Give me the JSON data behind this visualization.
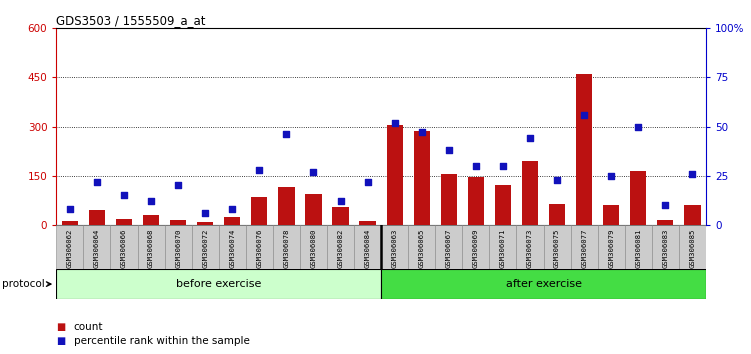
{
  "title": "GDS3503 / 1555509_a_at",
  "categories": [
    "GSM306062",
    "GSM306064",
    "GSM306066",
    "GSM306068",
    "GSM306070",
    "GSM306072",
    "GSM306074",
    "GSM306076",
    "GSM306078",
    "GSM306080",
    "GSM306082",
    "GSM306084",
    "GSM306063",
    "GSM306065",
    "GSM306067",
    "GSM306069",
    "GSM306071",
    "GSM306073",
    "GSM306075",
    "GSM306077",
    "GSM306079",
    "GSM306081",
    "GSM306083",
    "GSM306085"
  ],
  "count_values": [
    12,
    45,
    18,
    30,
    15,
    8,
    25,
    85,
    115,
    95,
    55,
    12,
    305,
    285,
    155,
    145,
    120,
    195,
    65,
    460,
    60,
    165,
    15,
    60
  ],
  "percentile_values": [
    8,
    22,
    15,
    12,
    20,
    6,
    8,
    28,
    46,
    27,
    12,
    22,
    52,
    47,
    38,
    30,
    30,
    44,
    23,
    56,
    25,
    50,
    10,
    26
  ],
  "before_exercise_count": 12,
  "after_exercise_count": 12,
  "bar_color": "#bb1111",
  "dot_color": "#1111bb",
  "before_bg": "#ccffcc",
  "after_bg": "#44dd44",
  "tick_bg": "#cccccc",
  "left_yaxis_color": "#cc0000",
  "right_yaxis_color": "#0000cc",
  "left_ylim": [
    0,
    600
  ],
  "right_ylim": [
    0,
    100
  ],
  "left_yticks": [
    0,
    150,
    300,
    450,
    600
  ],
  "right_yticks": [
    0,
    25,
    50,
    75,
    100
  ],
  "right_yticklabels": [
    "0",
    "25",
    "50",
    "75",
    "100%"
  ]
}
